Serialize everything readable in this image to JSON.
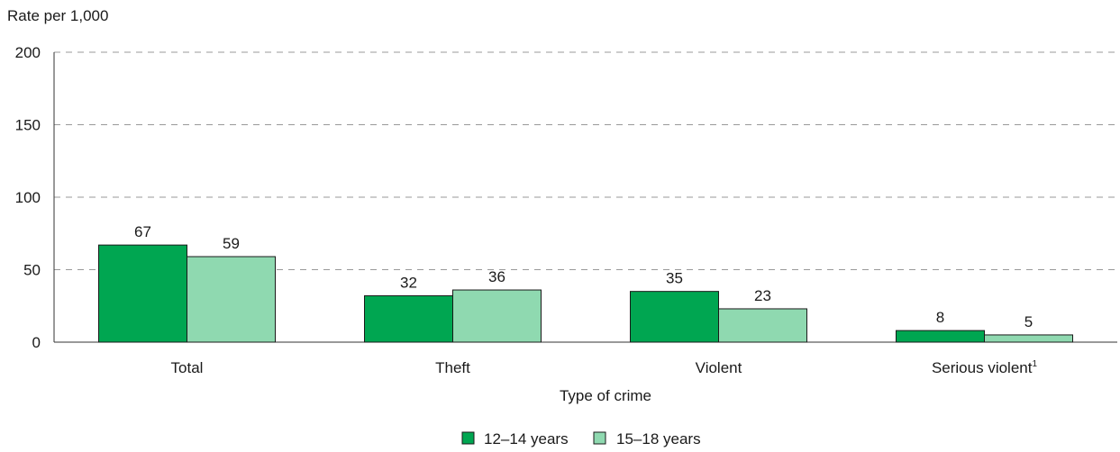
{
  "chart_data": {
    "type": "bar",
    "title": "",
    "ylabel": "Rate per 1,000",
    "xlabel": "Type of crime",
    "ylim": [
      0,
      200
    ],
    "yticks": [
      0,
      50,
      100,
      150,
      200
    ],
    "grid": "horizontal dashed",
    "categories": [
      "Total",
      "Theft",
      "Violent",
      "Serious violent"
    ],
    "footnote_marker": "1",
    "series": [
      {
        "name": "12–14 years",
        "color": "#00a651",
        "values": [
          67,
          32,
          35,
          8
        ]
      },
      {
        "name": "15–18 years",
        "color": "#8fd9b0",
        "values": [
          59,
          36,
          23,
          5
        ]
      }
    ],
    "legend_position": "bottom-center"
  }
}
